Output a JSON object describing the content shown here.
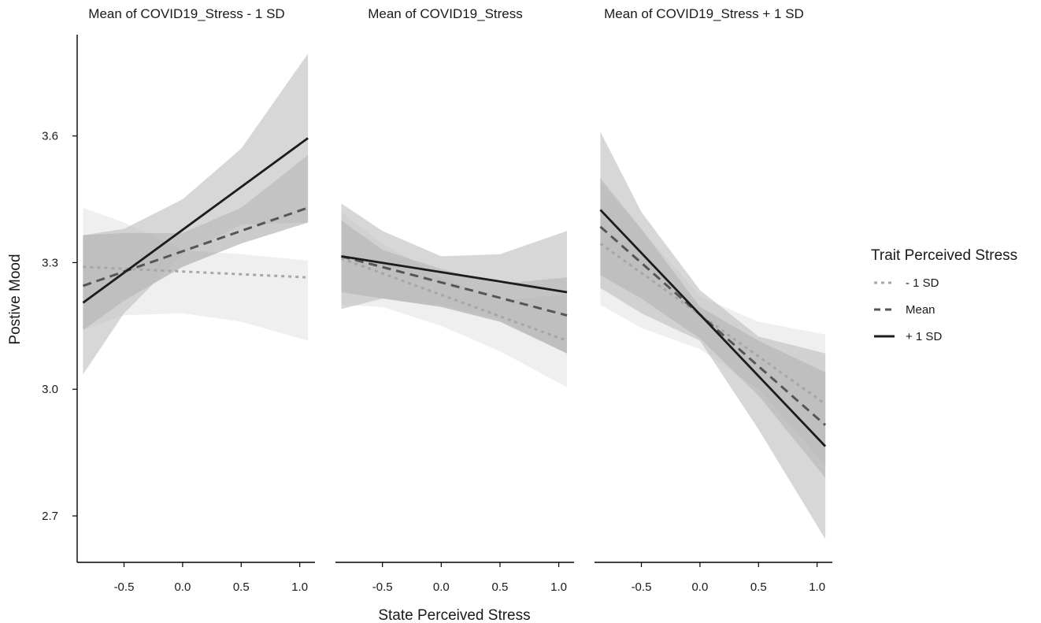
{
  "chart_data": {
    "type": "line",
    "xlabel": "State Perceived Stress",
    "ylabel": "Postive Mood",
    "xlim": [
      -0.9,
      1.13
    ],
    "ylim": [
      2.59,
      3.84
    ],
    "x_ticks": [
      -0.5,
      0.0,
      0.5,
      1.0
    ],
    "x_tick_labels": [
      "-0.5",
      "0.0",
      "0.5",
      "1.0"
    ],
    "y_ticks": [
      2.7,
      3.0,
      3.3,
      3.6
    ],
    "y_tick_labels": [
      "2.7",
      "3.0",
      "3.3",
      "3.6"
    ],
    "grid": false,
    "legend": {
      "title": "Trait Perceived Stress",
      "placement": "right",
      "entries": [
        {
          "label": "- 1 SD",
          "color": "#a6a6a6",
          "dash": "dotted"
        },
        {
          "label": "Mean",
          "color": "#555555",
          "dash": "dashed"
        },
        {
          "label": "+ 1 SD",
          "color": "#1c1c1c",
          "dash": "solid"
        }
      ]
    },
    "panels": [
      {
        "title": "Mean of COVID19_Stress - 1 SD",
        "series": [
          {
            "name": "- 1 SD",
            "x": [
              -0.85,
              1.07
            ],
            "y": [
              3.29,
              3.265
            ],
            "ci_x": [
              -0.85,
              -0.5,
              0.0,
              0.5,
              1.07
            ],
            "ci_lower": [
              3.14,
              3.175,
              3.18,
              3.16,
              3.115
            ],
            "ci_upper": [
              3.43,
              3.395,
              3.33,
              3.32,
              3.305
            ]
          },
          {
            "name": "Mean",
            "x": [
              -0.85,
              1.07
            ],
            "y": [
              3.245,
              3.43
            ],
            "ci_x": [
              -0.85,
              -0.5,
              0.0,
              0.5,
              1.07
            ],
            "ci_lower": [
              3.14,
              3.21,
              3.29,
              3.345,
              3.395
            ],
            "ci_upper": [
              3.365,
              3.37,
              3.37,
              3.43,
              3.555
            ]
          },
          {
            "name": "+ 1 SD",
            "x": [
              -0.85,
              1.07
            ],
            "y": [
              3.205,
              3.595
            ],
            "ci_x": [
              -0.85,
              -0.5,
              0.0,
              0.5,
              1.07
            ],
            "ci_lower": [
              3.035,
              3.18,
              3.32,
              3.39,
              3.395
            ],
            "ci_upper": [
              3.365,
              3.38,
              3.45,
              3.57,
              3.795
            ]
          }
        ]
      },
      {
        "title": "Mean of COVID19_Stress",
        "series": [
          {
            "name": "- 1 SD",
            "x": [
              -0.85,
              1.07
            ],
            "y": [
              3.31,
              3.115
            ],
            "ci_x": [
              -0.85,
              -0.5,
              0.0,
              0.5,
              1.07
            ],
            "ci_lower": [
              3.2,
              3.195,
              3.15,
              3.09,
              3.005
            ],
            "ci_upper": [
              3.42,
              3.345,
              3.265,
              3.21,
              3.225
            ]
          },
          {
            "name": "Mean",
            "x": [
              -0.85,
              1.07
            ],
            "y": [
              3.315,
              3.175
            ],
            "ci_x": [
              -0.85,
              -0.5,
              0.0,
              0.5,
              1.07
            ],
            "ci_lower": [
              3.23,
              3.215,
              3.195,
              3.16,
              3.085
            ],
            "ci_upper": [
              3.4,
              3.33,
              3.285,
              3.25,
              3.265
            ]
          },
          {
            "name": "+ 1 SD",
            "x": [
              -0.85,
              1.07
            ],
            "y": [
              3.315,
              3.23
            ],
            "ci_x": [
              -0.85,
              -0.5,
              0.0,
              0.5,
              1.07
            ],
            "ci_lower": [
              3.19,
              3.215,
              3.2,
              3.165,
              3.085
            ],
            "ci_upper": [
              3.44,
              3.375,
              3.315,
              3.32,
              3.375
            ]
          }
        ]
      },
      {
        "title": "Mean of COVID19_Stress + 1 SD",
        "series": [
          {
            "name": "- 1 SD",
            "x": [
              -0.85,
              1.07
            ],
            "y": [
              3.345,
              2.965
            ],
            "ci_x": [
              -0.85,
              -0.5,
              0.0,
              0.5,
              1.07
            ],
            "ci_lower": [
              3.2,
              3.145,
              3.095,
              3.0,
              2.82
            ],
            "ci_upper": [
              3.49,
              3.38,
              3.22,
              3.16,
              3.13
            ]
          },
          {
            "name": "Mean",
            "x": [
              -0.85,
              1.07
            ],
            "y": [
              3.385,
              2.915
            ],
            "ci_x": [
              -0.85,
              -0.5,
              0.0,
              0.5,
              1.07
            ],
            "ci_lower": [
              3.27,
              3.215,
              3.12,
              2.985,
              2.79
            ],
            "ci_upper": [
              3.5,
              3.38,
              3.195,
              3.115,
              3.04
            ]
          },
          {
            "name": "+ 1 SD",
            "x": [
              -0.85,
              1.07
            ],
            "y": [
              3.425,
              2.865
            ],
            "ci_x": [
              -0.85,
              -0.5,
              0.0,
              0.5,
              1.07
            ],
            "ci_lower": [
              3.24,
              3.18,
              3.115,
              2.905,
              2.645
            ],
            "ci_upper": [
              3.61,
              3.42,
              3.235,
              3.125,
              3.085
            ]
          }
        ]
      }
    ]
  }
}
